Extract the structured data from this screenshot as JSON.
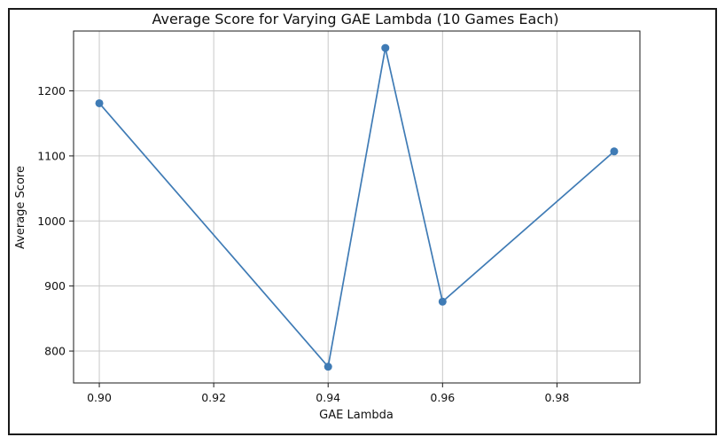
{
  "chart_data": {
    "type": "line",
    "title": "Average Score for Varying GAE Lambda (10 Games Each)",
    "xlabel": "GAE Lambda",
    "ylabel": "Average Score",
    "xlim": [
      0.8955,
      0.9945
    ],
    "ylim": [
      751,
      1292
    ],
    "xticks": [
      "0.90",
      "0.92",
      "0.94",
      "0.96",
      "0.98"
    ],
    "xtick_values": [
      0.9,
      0.92,
      0.94,
      0.96,
      0.98
    ],
    "yticks": [
      "800",
      "900",
      "1000",
      "1100",
      "1200"
    ],
    "ytick_values": [
      800,
      900,
      1000,
      1100,
      1200
    ],
    "grid": true,
    "series": [
      {
        "x": [
          0.9,
          0.94,
          0.95,
          0.96,
          0.99
        ],
        "y": [
          1181,
          776,
          1266,
          876,
          1107
        ]
      }
    ],
    "colors": {
      "line": "#3f7bb5",
      "marker": "#3f7bb5",
      "grid": "#c8c8c8",
      "axes": "#1a1a1a"
    }
  }
}
